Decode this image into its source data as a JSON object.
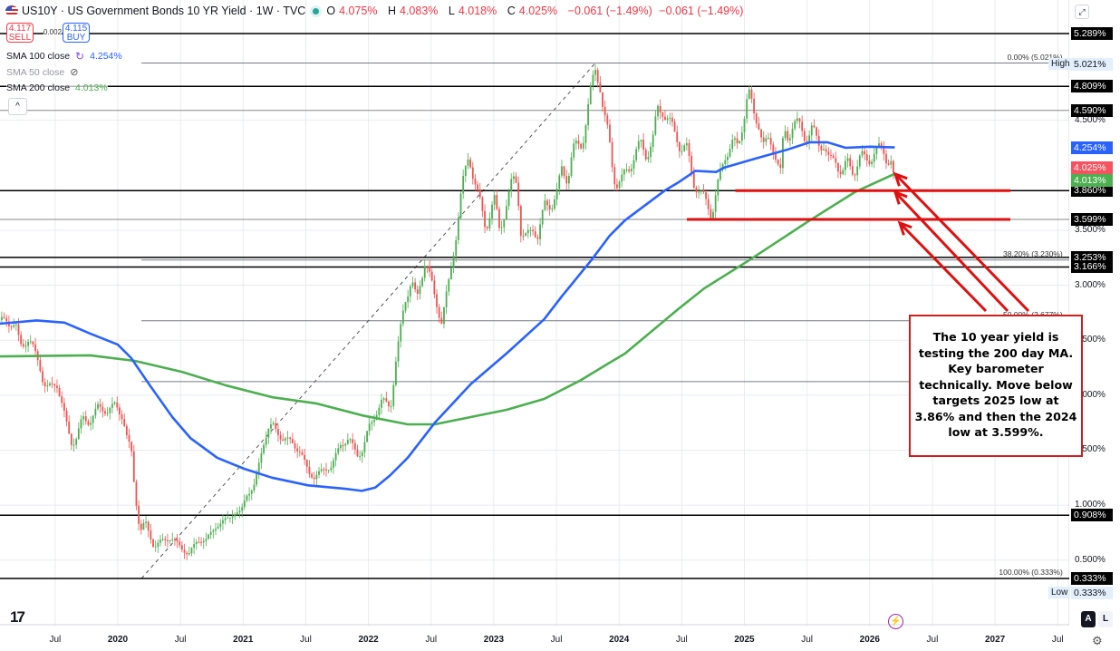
{
  "header": {
    "symbol_title": "US10Y · US Government Bonds 10 YR Yield · 1W · TVC",
    "open_label": "O",
    "open": "4.075%",
    "high_label": "H",
    "high": "4.083%",
    "low_label": "L",
    "low": "4.018%",
    "close_label": "C",
    "close": "4.025%",
    "change": "−0.061 (−1.49%)",
    "change2": "−0.061 (−1.49%)",
    "market_status_color": "#26a69a"
  },
  "trade": {
    "sell_price": "4.117",
    "sell_label": "SELL",
    "spread": "0.002",
    "buy_price": "4.115",
    "buy_label": "BUY"
  },
  "legend": [
    {
      "name": "SMA 100 close",
      "value": "4.254%",
      "color": "#2962ff",
      "icon": "refresh-icon"
    },
    {
      "name": "SMA 50 close",
      "value": "",
      "color": "#b2b5be",
      "icon": "eye-off-icon"
    },
    {
      "name": "SMA 200 close",
      "value": "4.013%",
      "color": "#4caf50",
      "icon": ""
    }
  ],
  "collapse_label": "^",
  "annotation": {
    "lines": [
      "The 10 year yield is",
      "testing the 200 day MA.",
      "Key barometer",
      "technically. Move below",
      "targets 2025 low at",
      "3.86% and then the 2024",
      "low at 3.599%."
    ],
    "color": "#d01e1e"
  },
  "bottom": {
    "auto_label": "A",
    "log_label": "L",
    "logo": "TV"
  },
  "chart_data": {
    "type": "candlestick",
    "interval": "1W",
    "y_scale": "linear",
    "ylim": [
      0.2,
      5.5
    ],
    "grid": true,
    "x_ticks": [
      {
        "date": "2019-07-01",
        "label": "Jul"
      },
      {
        "date": "2020-01-01",
        "label": "2020"
      },
      {
        "date": "2020-07-01",
        "label": "Jul"
      },
      {
        "date": "2021-01-01",
        "label": "2021"
      },
      {
        "date": "2021-07-01",
        "label": "Jul"
      },
      {
        "date": "2022-01-01",
        "label": "2022"
      },
      {
        "date": "2022-07-01",
        "label": "Jul"
      },
      {
        "date": "2023-01-01",
        "label": "2023"
      },
      {
        "date": "2023-07-01",
        "label": "Jul"
      },
      {
        "date": "2024-01-01",
        "label": "2024"
      },
      {
        "date": "2024-07-01",
        "label": "Jul"
      },
      {
        "date": "2025-01-01",
        "label": "2025"
      },
      {
        "date": "2025-07-01",
        "label": "Jul"
      },
      {
        "date": "2026-01-01",
        "label": "2026"
      },
      {
        "date": "2026-07-01",
        "label": "Jul"
      },
      {
        "date": "2027-01-01",
        "label": "2027"
      },
      {
        "date": "2027-07-01",
        "label": "Jul"
      }
    ],
    "y_ticks": [
      {
        "value": 4.5,
        "label": "4.500%"
      },
      {
        "value": 3.5,
        "label": "3.500%"
      },
      {
        "value": 3.0,
        "label": "3.000%"
      },
      {
        "value": 2.5,
        "label": "2.500%"
      },
      {
        "value": 2.0,
        "label": "2.000%"
      },
      {
        "value": 1.5,
        "label": "1.500%"
      },
      {
        "value": 1.0,
        "label": "1.000%"
      },
      {
        "value": 0.5,
        "label": "0.500%"
      }
    ],
    "up_color": "#4caf50",
    "down_color": "#ef5350",
    "closes": [
      [
        "2019-01-21",
        2.65
      ],
      [
        "2019-02-10",
        2.7
      ],
      [
        "2019-03-10",
        2.6
      ],
      [
        "2019-03-20",
        2.46
      ],
      [
        "2019-04-15",
        2.5
      ],
      [
        "2019-05-15",
        2.31
      ],
      [
        "2019-05-25",
        2.15
      ],
      [
        "2019-06-05",
        2.05
      ],
      [
        "2019-07-05",
        2.12
      ],
      [
        "2019-08-05",
        1.72
      ],
      [
        "2019-08-20",
        1.55
      ],
      [
        "2019-09-01",
        1.6
      ],
      [
        "2019-09-20",
        1.8
      ],
      [
        "2019-10-10",
        1.75
      ],
      [
        "2019-11-05",
        1.9
      ],
      [
        "2019-12-01",
        1.85
      ],
      [
        "2019-12-25",
        1.92
      ],
      [
        "2020-01-15",
        1.8
      ],
      [
        "2020-01-28",
        1.6
      ],
      [
        "2020-02-10",
        1.5
      ],
      [
        "2020-02-21",
        1.1
      ],
      [
        "2020-03-05",
        0.75
      ],
      [
        "2020-03-20",
        0.85
      ],
      [
        "2020-04-15",
        0.62
      ],
      [
        "2020-05-10",
        0.68
      ],
      [
        "2020-06-05",
        0.7
      ],
      [
        "2020-07-01",
        0.62
      ],
      [
        "2020-07-25",
        0.55
      ],
      [
        "2020-08-20",
        0.68
      ],
      [
        "2020-09-15",
        0.68
      ],
      [
        "2020-10-10",
        0.8
      ],
      [
        "2020-11-05",
        0.85
      ],
      [
        "2020-12-01",
        0.92
      ],
      [
        "2020-12-25",
        0.93
      ],
      [
        "2021-01-10",
        1.1
      ],
      [
        "2021-02-01",
        1.15
      ],
      [
        "2021-02-15",
        1.35
      ],
      [
        "2021-02-28",
        1.55
      ],
      [
        "2021-03-15",
        1.7
      ],
      [
        "2021-03-28",
        1.72
      ],
      [
        "2021-04-25",
        1.6
      ],
      [
        "2021-05-20",
        1.58
      ],
      [
        "2021-06-15",
        1.48
      ],
      [
        "2021-07-10",
        1.3
      ],
      [
        "2021-07-25",
        1.25
      ],
      [
        "2021-08-20",
        1.32
      ],
      [
        "2021-09-15",
        1.35
      ],
      [
        "2021-10-10",
        1.55
      ],
      [
        "2021-11-05",
        1.6
      ],
      [
        "2021-12-01",
        1.45
      ],
      [
        "2021-12-15",
        1.5
      ],
      [
        "2022-01-01",
        1.7
      ],
      [
        "2022-01-15",
        1.78
      ],
      [
        "2022-02-10",
        1.95
      ],
      [
        "2022-03-05",
        1.9
      ],
      [
        "2022-03-20",
        2.3
      ],
      [
        "2022-04-01",
        2.55
      ],
      [
        "2022-04-15",
        2.85
      ],
      [
        "2022-05-05",
        3.05
      ],
      [
        "2022-05-20",
        2.85
      ],
      [
        "2022-06-15",
        3.25
      ],
      [
        "2022-07-10",
        2.9
      ],
      [
        "2022-08-01",
        2.68
      ],
      [
        "2022-08-25",
        3.06
      ],
      [
        "2022-09-10",
        3.4
      ],
      [
        "2022-09-28",
        3.84
      ],
      [
        "2022-10-20",
        4.2
      ],
      [
        "2022-11-12",
        3.86
      ],
      [
        "2022-12-08",
        3.53
      ],
      [
        "2023-01-02",
        3.78
      ],
      [
        "2023-01-18",
        3.5
      ],
      [
        "2023-02-25",
        3.95
      ],
      [
        "2023-03-08",
        3.95
      ],
      [
        "2023-03-20",
        3.47
      ],
      [
        "2023-04-05",
        3.42
      ],
      [
        "2023-04-25",
        3.53
      ],
      [
        "2023-05-08",
        3.45
      ],
      [
        "2023-05-28",
        3.72
      ],
      [
        "2023-06-18",
        3.75
      ],
      [
        "2023-07-06",
        3.86
      ],
      [
        "2023-07-15",
        4.05
      ],
      [
        "2023-08-03",
        3.98
      ],
      [
        "2023-08-18",
        4.22
      ],
      [
        "2023-09-15",
        4.3
      ],
      [
        "2023-10-03",
        4.63
      ],
      [
        "2023-10-16",
        4.85
      ],
      [
        "2023-10-24",
        4.98
      ],
      [
        "2023-11-06",
        4.85
      ],
      [
        "2023-11-17",
        4.55
      ],
      [
        "2023-12-03",
        4.3
      ],
      [
        "2023-12-16",
        4.0
      ],
      [
        "2023-12-27",
        3.92
      ],
      [
        "2024-01-10",
        3.95
      ],
      [
        "2024-01-24",
        4.05
      ],
      [
        "2024-02-14",
        4.17
      ],
      [
        "2024-03-05",
        4.28
      ],
      [
        "2024-03-20",
        4.2
      ],
      [
        "2024-04-08",
        4.3
      ],
      [
        "2024-04-22",
        4.6
      ],
      [
        "2024-05-05",
        4.62
      ],
      [
        "2024-05-24",
        4.47
      ],
      [
        "2024-06-20",
        4.35
      ],
      [
        "2024-06-28",
        4.25
      ],
      [
        "2024-07-16",
        4.22
      ],
      [
        "2024-08-06",
        3.95
      ],
      [
        "2024-08-24",
        3.82
      ],
      [
        "2024-09-15",
        3.75
      ],
      [
        "2024-09-28",
        3.65
      ],
      [
        "2024-10-12",
        3.85
      ],
      [
        "2024-10-25",
        4.05
      ],
      [
        "2024-11-08",
        4.22
      ],
      [
        "2024-11-26",
        4.28
      ],
      [
        "2024-12-12",
        4.25
      ],
      [
        "2024-12-30",
        4.55
      ],
      [
        "2025-01-12",
        4.75
      ],
      [
        "2025-01-28",
        4.55
      ],
      [
        "2025-02-12",
        4.5
      ],
      [
        "2025-02-28",
        4.25
      ],
      [
        "2025-03-14",
        4.3
      ],
      [
        "2025-03-28",
        4.25
      ],
      [
        "2025-04-16",
        4.0
      ],
      [
        "2025-04-24",
        4.38
      ],
      [
        "2025-05-06",
        4.35
      ],
      [
        "2025-05-22",
        4.5
      ],
      [
        "2025-06-10",
        4.42
      ],
      [
        "2025-06-28",
        4.35
      ],
      [
        "2025-07-14",
        4.42
      ],
      [
        "2025-08-02",
        4.28
      ],
      [
        "2025-08-20",
        4.3
      ],
      [
        "2025-09-05",
        4.1
      ],
      [
        "2025-09-24",
        4.15
      ],
      [
        "2025-10-12",
        4.02
      ],
      [
        "2025-10-28",
        4.1
      ],
      [
        "2025-11-16",
        4.05
      ],
      [
        "2025-12-04",
        4.15
      ],
      [
        "2025-12-20",
        4.15
      ],
      [
        "2026-01-08",
        4.18
      ],
      [
        "2026-01-26",
        4.22
      ],
      [
        "2026-02-10",
        4.25
      ],
      [
        "2026-02-22",
        4.15
      ],
      [
        "2026-03-08",
        4.08
      ],
      [
        "2026-03-16",
        4.025
      ]
    ],
    "sma100": {
      "color": "#2962ff",
      "points": [
        [
          "2019-01-22",
          2.65
        ],
        [
          "2019-05-08",
          2.68
        ],
        [
          "2019-07-28",
          2.66
        ],
        [
          "2019-10-12",
          2.56
        ],
        [
          "2020-01-01",
          2.46
        ],
        [
          "2020-02-09",
          2.34
        ],
        [
          "2020-04-03",
          2.09
        ],
        [
          "2020-06-08",
          1.8
        ],
        [
          "2020-07-30",
          1.61
        ],
        [
          "2020-10-17",
          1.43
        ],
        [
          "2021-01-05",
          1.33
        ],
        [
          "2021-03-24",
          1.25
        ],
        [
          "2021-07-08",
          1.18
        ],
        [
          "2021-10-21",
          1.15
        ],
        [
          "2021-12-12",
          1.13
        ],
        [
          "2022-01-21",
          1.16
        ],
        [
          "2022-03-03",
          1.27
        ],
        [
          "2022-04-24",
          1.43
        ],
        [
          "2022-07-12",
          1.75
        ],
        [
          "2022-10-25",
          2.1
        ],
        [
          "2023-02-08",
          2.38
        ],
        [
          "2023-05-26",
          2.69
        ],
        [
          "2023-07-17",
          2.9
        ],
        [
          "2023-10-12",
          3.23
        ],
        [
          "2023-12-04",
          3.45
        ],
        [
          "2024-01-18",
          3.59
        ],
        [
          "2024-03-30",
          3.76
        ],
        [
          "2024-05-12",
          3.86
        ],
        [
          "2024-06-24",
          3.94
        ],
        [
          "2024-08-10",
          4.04
        ],
        [
          "2024-10-10",
          4.03
        ],
        [
          "2024-11-03",
          4.07
        ],
        [
          "2025-01-31",
          4.15
        ],
        [
          "2025-05-01",
          4.23
        ],
        [
          "2025-07-09",
          4.3
        ],
        [
          "2025-08-30",
          4.3
        ],
        [
          "2025-10-22",
          4.25
        ],
        [
          "2026-01-01",
          4.26
        ],
        [
          "2026-03-13",
          4.254
        ]
      ]
    },
    "sma200": {
      "color": "#4caf50",
      "points": [
        [
          "2019-01-22",
          2.353
        ],
        [
          "2019-10-12",
          2.362
        ],
        [
          "2020-02-20",
          2.312
        ],
        [
          "2020-07-04",
          2.213
        ],
        [
          "2020-11-12",
          2.089
        ],
        [
          "2021-03-24",
          1.982
        ],
        [
          "2021-08-03",
          1.924
        ],
        [
          "2021-12-12",
          1.817
        ],
        [
          "2022-04-24",
          1.735
        ],
        [
          "2022-07-12",
          1.735
        ],
        [
          "2022-10-25",
          1.801
        ],
        [
          "2023-02-08",
          1.867
        ],
        [
          "2023-05-26",
          1.966
        ],
        [
          "2023-09-08",
          2.131
        ],
        [
          "2023-12-04",
          2.296
        ],
        [
          "2024-01-18",
          2.378
        ],
        [
          "2024-06-24",
          2.79
        ],
        [
          "2024-09-06",
          2.972
        ],
        [
          "2025-01-15",
          3.228
        ],
        [
          "2025-07-09",
          3.59
        ],
        [
          "2025-11-18",
          3.846
        ],
        [
          "2026-03-13",
          4.013
        ]
      ]
    },
    "horizontal_levels": [
      {
        "value": 5.289,
        "label": "5.289%",
        "style": "black",
        "from": "2019-01-22"
      },
      {
        "value": 4.809,
        "label": "4.809%",
        "style": "black",
        "from": "2019-01-22"
      },
      {
        "value": 4.59,
        "label": "4.590%",
        "style": "gray",
        "from": "2019-01-22"
      },
      {
        "value": 3.86,
        "label": "3.860%",
        "style": "black",
        "from": "2019-01-22"
      },
      {
        "value": 3.599,
        "label": "3.599%",
        "style": "gray",
        "from": "2019-01-22"
      },
      {
        "value": 3.253,
        "label": "3.253%",
        "style": "black",
        "from": "2019-01-22"
      },
      {
        "value": 3.166,
        "label": "3.166%",
        "style": "black",
        "from": "2019-01-22"
      },
      {
        "value": 0.908,
        "label": "0.908%",
        "style": "black",
        "from": "2019-01-22"
      },
      {
        "value": 0.333,
        "label": "0.333%",
        "style": "black",
        "from": "2019-01-22"
      }
    ],
    "fibonacci": {
      "from": [
        "2020-03-09",
        0.333
      ],
      "to": [
        "2023-10-23",
        5.021
      ],
      "levels": [
        {
          "value": 5.021,
          "label": "0.00% (5.021%)"
        },
        {
          "value": 3.23,
          "label": "38.20% (3.230%)"
        },
        {
          "value": 2.677,
          "label": "50.00% (2.677%)"
        },
        {
          "value": 2.124,
          "label": ""
        },
        {
          "value": 0.333,
          "label": "100.00% (0.333%)"
        }
      ]
    },
    "support_lines": [
      {
        "value": 3.86,
        "from": "2024-12-35",
        "start": "2024-12-05",
        "color": "#e01010"
      },
      {
        "value": 3.599,
        "start": "2024-07-16",
        "color": "#e01010"
      }
    ],
    "high": {
      "label": "High",
      "value": "5.021%"
    },
    "low": {
      "label": "Low",
      "value": "0.333%"
    },
    "last_values": [
      {
        "value": 4.254,
        "label": "4.254%",
        "color": "#2962ff"
      },
      {
        "value": 4.025,
        "label": "4.025%",
        "color": "#f7525f"
      },
      {
        "value": 4.013,
        "label": "4.013%",
        "color": "#4caf50"
      }
    ]
  }
}
